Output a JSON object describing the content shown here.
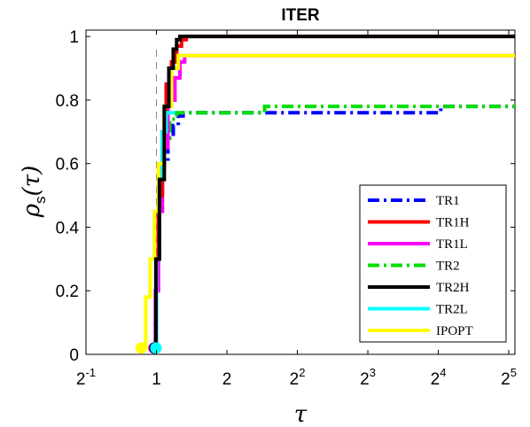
{
  "chart_data": {
    "type": "line",
    "title": "ITER",
    "xlabel": "τ",
    "ylabel_main": "ρ",
    "ylabel_sub": "s",
    "ylabel_arg": "(τ)",
    "x_scale": "log2",
    "xlim": [
      0.5,
      34
    ],
    "ylim": [
      0,
      1.02
    ],
    "x_ticks": [
      {
        "value": 0.5,
        "base": "2",
        "exp": "-1"
      },
      {
        "value": 1,
        "base": "1",
        "exp": ""
      },
      {
        "value": 2,
        "base": "2",
        "exp": ""
      },
      {
        "value": 4,
        "base": "2",
        "exp": "2"
      },
      {
        "value": 8,
        "base": "2",
        "exp": "3"
      },
      {
        "value": 16,
        "base": "2",
        "exp": "4"
      },
      {
        "value": 32,
        "base": "2",
        "exp": "5"
      }
    ],
    "y_ticks": [
      {
        "value": 0,
        "label": "0"
      },
      {
        "value": 0.2,
        "label": "0.2"
      },
      {
        "value": 0.4,
        "label": "0.4"
      },
      {
        "value": 0.6,
        "label": "0.6"
      },
      {
        "value": 0.8,
        "label": "0.8"
      },
      {
        "value": 1,
        "label": "1"
      }
    ],
    "grid": false,
    "legend_position": "bottom-right",
    "reference_line_x": 1,
    "series": [
      {
        "name": "TR1",
        "color": "#0000ff",
        "dash": "dashdot",
        "start_marker_color": "#0000ff",
        "points": [
          [
            0.985,
            0.02
          ],
          [
            0.99,
            0.1
          ],
          [
            1.0,
            0.3
          ],
          [
            1.02,
            0.45
          ],
          [
            1.06,
            0.6
          ],
          [
            1.12,
            0.68
          ],
          [
            1.18,
            0.72
          ],
          [
            1.24,
            0.75
          ],
          [
            1.3,
            0.76
          ],
          [
            16.2,
            0.76
          ],
          [
            16.4,
            0.78
          ],
          [
            34,
            0.78
          ]
        ]
      },
      {
        "name": "TR1H",
        "color": "#ff0000",
        "dash": "solid",
        "start_marker_color": "#ff0000",
        "points": [
          [
            0.985,
            0.02
          ],
          [
            0.995,
            0.3
          ],
          [
            1.02,
            0.5
          ],
          [
            1.06,
            0.7
          ],
          [
            1.1,
            0.85
          ],
          [
            1.16,
            0.92
          ],
          [
            1.22,
            0.97
          ],
          [
            1.28,
            0.99
          ],
          [
            1.34,
            1.0
          ],
          [
            34,
            1.0
          ]
        ]
      },
      {
        "name": "TR1L",
        "color": "#ff00ff",
        "dash": "solid",
        "start_marker_color": "#ff00ff",
        "points": [
          [
            0.975,
            0.02
          ],
          [
            0.99,
            0.2
          ],
          [
            1.02,
            0.45
          ],
          [
            1.06,
            0.65
          ],
          [
            1.12,
            0.8
          ],
          [
            1.2,
            0.87
          ],
          [
            1.26,
            0.92
          ],
          [
            1.32,
            0.94
          ],
          [
            34,
            0.94
          ]
        ]
      },
      {
        "name": "TR2",
        "color": "#00dd00",
        "dash": "dashdot",
        "start_marker_color": "#00dd00",
        "points": [
          [
            0.985,
            0.02
          ],
          [
            0.995,
            0.3
          ],
          [
            1.03,
            0.55
          ],
          [
            1.08,
            0.68
          ],
          [
            1.14,
            0.74
          ],
          [
            1.22,
            0.76
          ],
          [
            2.85,
            0.76
          ],
          [
            2.9,
            0.78
          ],
          [
            34,
            0.78
          ]
        ]
      },
      {
        "name": "TR2H",
        "color": "#000000",
        "dash": "solid",
        "start_marker_color": "#000000",
        "points": [
          [
            0.985,
            0.02
          ],
          [
            0.995,
            0.3
          ],
          [
            1.03,
            0.55
          ],
          [
            1.08,
            0.78
          ],
          [
            1.13,
            0.9
          ],
          [
            1.18,
            0.96
          ],
          [
            1.22,
            0.99
          ],
          [
            1.26,
            1.0
          ],
          [
            34,
            1.0
          ]
        ]
      },
      {
        "name": "TR2L",
        "color": "#00ffff",
        "dash": "solid",
        "start_marker_color": "#00ffff",
        "points": [
          [
            0.995,
            0.02
          ],
          [
            1.0,
            0.3
          ],
          [
            1.03,
            0.55
          ],
          [
            1.06,
            0.7
          ],
          [
            1.1,
            0.76
          ],
          [
            1.16,
            0.76
          ],
          [
            1.2,
            0.76
          ]
        ]
      },
      {
        "name": "IPOPT",
        "color": "#ffff00",
        "dash": "solid",
        "start_marker_color": "#ffff00",
        "points": [
          [
            0.86,
            0.02
          ],
          [
            0.9,
            0.18
          ],
          [
            0.94,
            0.3
          ],
          [
            0.98,
            0.45
          ],
          [
            1.02,
            0.6
          ],
          [
            1.08,
            0.78
          ],
          [
            1.16,
            0.9
          ],
          [
            1.24,
            0.94
          ],
          [
            34,
            0.94
          ]
        ]
      }
    ]
  }
}
